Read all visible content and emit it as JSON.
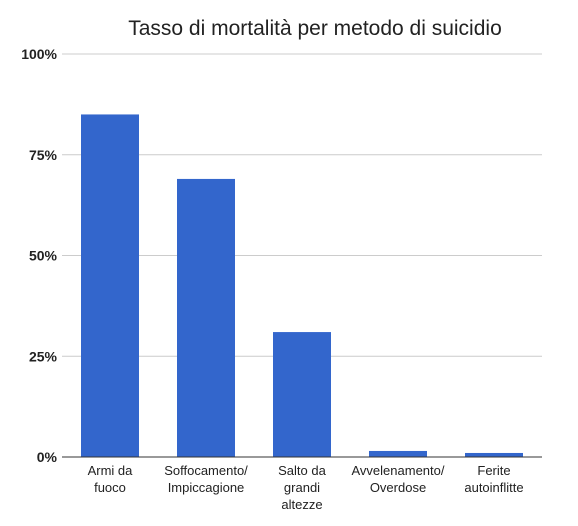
{
  "chart_data": {
    "type": "bar",
    "title": "Tasso di mortalità per metodo di suicidio",
    "xlabel": "",
    "ylabel": "",
    "categories": [
      [
        "Armi da",
        "fuoco"
      ],
      [
        "Soffocamento/",
        "Impiccagione"
      ],
      [
        "Salto da",
        "grandi",
        "altezze"
      ],
      [
        "Avvelenamento/",
        "Overdose"
      ],
      [
        "Ferite",
        "autoinflitte"
      ]
    ],
    "values": [
      85,
      69,
      31,
      1.5,
      1
    ],
    "ylim": [
      0,
      100
    ],
    "yticks": [
      0,
      25,
      50,
      75,
      100
    ],
    "ytick_labels": [
      "0%",
      "25%",
      "50%",
      "75%",
      "100%"
    ],
    "bar_color": "#3366cc",
    "grid": true,
    "legend": "none"
  }
}
